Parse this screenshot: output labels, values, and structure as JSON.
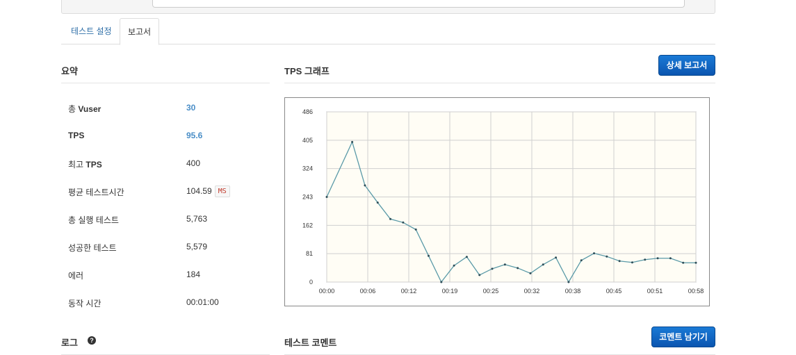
{
  "tabs": [
    {
      "label": "테스트 설정"
    },
    {
      "label": "보고서"
    }
  ],
  "summary": {
    "title": "요약",
    "rows": [
      {
        "label_prefix": "총 ",
        "label_bold": "Vuser",
        "value": "30",
        "value_style": "link"
      },
      {
        "label_prefix": "",
        "label_bold": "TPS",
        "value": "95.6",
        "value_style": "link"
      },
      {
        "label_prefix": "최고 ",
        "label_bold": "TPS",
        "value": "400",
        "value_style": "plain"
      },
      {
        "label_prefix": "평균 테스트시간",
        "label_bold": "",
        "value": "104.59",
        "value_style": "plain",
        "unit": "MS"
      },
      {
        "label_prefix": "총 실행 테스트",
        "label_bold": "",
        "value": "5,763",
        "value_style": "plain"
      },
      {
        "label_prefix": "성공한 테스트",
        "label_bold": "",
        "value": "5,579",
        "value_style": "plain"
      },
      {
        "label_prefix": "에러",
        "label_bold": "",
        "value": "184",
        "value_style": "plain"
      },
      {
        "label_prefix": "동작 시간",
        "label_bold": "",
        "value": "00:01:00",
        "value_style": "plain"
      }
    ]
  },
  "graph": {
    "title": "TPS 그래프",
    "detail_button_label": "상세 보고서"
  },
  "log": {
    "title": "로그",
    "help_icon": "question-circle-icon",
    "help_glyph": "?"
  },
  "comment": {
    "title": "테스트 코멘트",
    "button_label": "코멘트 남기기"
  },
  "colors": {
    "link": "#4a8ec7",
    "button": "#0b63c4",
    "chart_line": "#5a9aa8",
    "chart_bg": "#fffdf5"
  },
  "chart_data": {
    "type": "line",
    "title": "",
    "xlabel": "",
    "ylabel": "",
    "yticks": [
      "0",
      "81",
      "162",
      "243",
      "324",
      "405",
      "486"
    ],
    "xticks": [
      "00:00",
      "00:06",
      "00:12",
      "00:19",
      "00:25",
      "00:32",
      "00:38",
      "00:45",
      "00:51",
      "00:58"
    ],
    "ylim": [
      0,
      486
    ],
    "xlim": [
      0,
      58
    ],
    "grid": true,
    "series": [
      {
        "x": [
          0,
          4,
          6,
          8,
          10,
          12,
          14,
          16,
          18,
          20,
          22,
          24,
          26,
          28,
          30,
          32,
          34,
          36,
          38,
          40,
          42,
          44,
          46,
          48,
          50,
          52,
          54,
          56,
          58
        ],
        "values": [
          243,
          400,
          276,
          227,
          180,
          170,
          150,
          75,
          0,
          47,
          72,
          20,
          38,
          50,
          40,
          25,
          50,
          70,
          0,
          62,
          82,
          73,
          60,
          56,
          64,
          68,
          68,
          55,
          55
        ]
      }
    ]
  }
}
